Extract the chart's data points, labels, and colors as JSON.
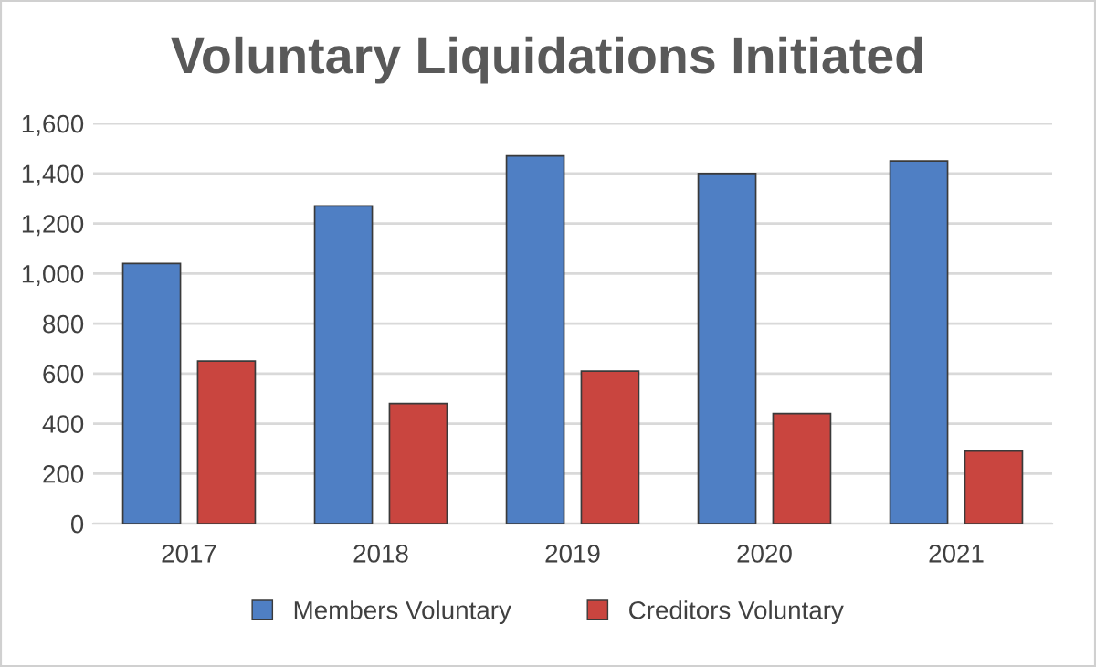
{
  "chart_data": {
    "type": "bar",
    "title": "Voluntary Liquidations Initiated",
    "categories": [
      "2017",
      "2018",
      "2019",
      "2020",
      "2021"
    ],
    "series": [
      {
        "name": "Members Voluntary",
        "color": "#4f7fc4",
        "values": [
          1040,
          1270,
          1470,
          1400,
          1450
        ]
      },
      {
        "name": "Creditors Voluntary",
        "color": "#c9453f",
        "values": [
          650,
          480,
          610,
          440,
          290
        ]
      }
    ],
    "ylim": [
      0,
      1600
    ],
    "yticks": [
      {
        "value": 0,
        "label": "0"
      },
      {
        "value": 200,
        "label": "200"
      },
      {
        "value": 400,
        "label": "400"
      },
      {
        "value": 600,
        "label": "600"
      },
      {
        "value": 800,
        "label": "800"
      },
      {
        "value": 1000,
        "label": "1,000"
      },
      {
        "value": 1200,
        "label": "1,200"
      },
      {
        "value": 1400,
        "label": "1,400"
      },
      {
        "value": 1600,
        "label": "1,600"
      }
    ],
    "grid": "y",
    "legend": "bottom"
  }
}
